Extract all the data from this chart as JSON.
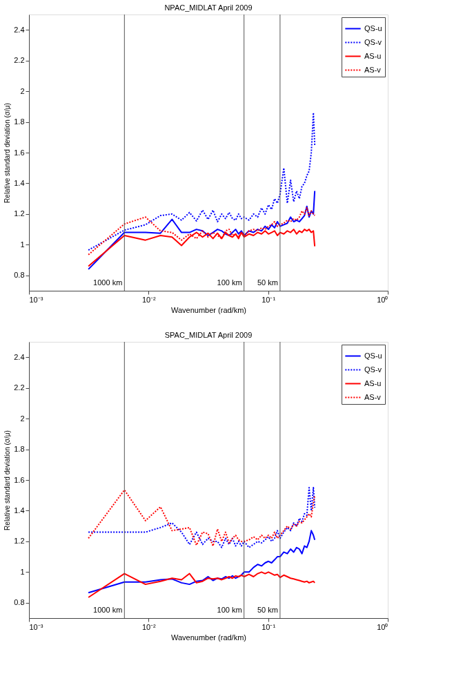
{
  "chart_data": [
    {
      "type": "line",
      "title": "NPAC_MIDLAT April 2009",
      "xlabel": "Wavenumber (rad/km)",
      "ylabel": "Relative standard deviation (σ/μ)",
      "log": "x",
      "grid": false,
      "legend": "top right",
      "x": [
        0.00314,
        0.00628,
        0.00942,
        0.01257,
        0.01571,
        0.01885,
        0.02199,
        0.02513,
        0.02827,
        0.03142,
        0.03456,
        0.0377,
        0.04084,
        0.04398,
        0.04712,
        0.05027,
        0.05341,
        0.05655,
        0.05969,
        0.06283,
        0.06912,
        0.0754,
        0.08168,
        0.08796,
        0.09425,
        0.1005,
        0.1068,
        0.1131,
        0.1194,
        0.1257,
        0.1351,
        0.1445,
        0.1539,
        0.1634,
        0.1728,
        0.1822,
        0.1916,
        0.2011,
        0.2105,
        0.2199,
        0.2293,
        0.2388,
        0.245
      ],
      "xlim": [
        0.001,
        1
      ],
      "xticks": [
        {
          "value": 0.001,
          "label": "10⁻³"
        },
        {
          "value": 0.01,
          "label": "10⁻²"
        },
        {
          "value": 0.1,
          "label": "10⁻¹"
        },
        {
          "value": 1,
          "label": "10⁰"
        }
      ],
      "ylim": [
        0.7,
        2.5
      ],
      "yticks": [
        0.8,
        1,
        1.2,
        1.4,
        1.6,
        1.8,
        2,
        2.2,
        2.4
      ],
      "ref_lines": [
        {
          "axis": "x",
          "value": 0.00628,
          "label": "1000 km",
          "color": "#555555"
        },
        {
          "axis": "x",
          "value": 0.0628,
          "label": "100 km",
          "color": "#555555"
        },
        {
          "axis": "x",
          "value": 0.1257,
          "label": "50 km",
          "color": "#555555"
        }
      ],
      "series": [
        {
          "name": "QS-u",
          "color": "#0000ff",
          "line_style": "solid",
          "values": [
            0.84,
            1.08,
            1.08,
            1.075,
            1.165,
            1.08,
            1.08,
            1.1,
            1.09,
            1.06,
            1.08,
            1.1,
            1.09,
            1.07,
            1.06,
            1.08,
            1.1,
            1.07,
            1.09,
            1.06,
            1.09,
            1.08,
            1.1,
            1.09,
            1.12,
            1.1,
            1.13,
            1.11,
            1.15,
            1.12,
            1.13,
            1.14,
            1.18,
            1.15,
            1.16,
            1.15,
            1.17,
            1.19,
            1.25,
            1.18,
            1.22,
            1.2,
            1.35
          ]
        },
        {
          "name": "QS-v",
          "color": "#0000ff",
          "line_style": "dotted",
          "values": [
            0.965,
            1.095,
            1.13,
            1.19,
            1.2,
            1.16,
            1.21,
            1.155,
            1.225,
            1.165,
            1.225,
            1.15,
            1.2,
            1.17,
            1.21,
            1.17,
            1.16,
            1.2,
            1.17,
            1.18,
            1.16,
            1.2,
            1.18,
            1.24,
            1.2,
            1.26,
            1.23,
            1.3,
            1.27,
            1.33,
            1.5,
            1.27,
            1.42,
            1.28,
            1.35,
            1.3,
            1.38,
            1.4,
            1.45,
            1.48,
            1.6,
            1.86,
            1.65
          ]
        },
        {
          "name": "AS-u",
          "color": "#ff0000",
          "line_style": "solid",
          "values": [
            0.86,
            1.06,
            1.03,
            1.06,
            1.05,
            0.995,
            1.05,
            1.08,
            1.05,
            1.075,
            1.04,
            1.075,
            1.04,
            1.08,
            1.06,
            1.05,
            1.07,
            1.04,
            1.08,
            1.05,
            1.07,
            1.06,
            1.08,
            1.07,
            1.09,
            1.07,
            1.08,
            1.09,
            1.06,
            1.08,
            1.07,
            1.09,
            1.08,
            1.1,
            1.07,
            1.09,
            1.08,
            1.1,
            1.09,
            1.1,
            1.08,
            1.09,
            0.99
          ]
        },
        {
          "name": "AS-v",
          "color": "#ff0000",
          "line_style": "dotted",
          "values": [
            0.935,
            1.135,
            1.18,
            1.09,
            1.08,
            1.03,
            1.07,
            1.04,
            1.09,
            1.05,
            1.08,
            1.06,
            1.04,
            1.09,
            1.1,
            1.06,
            1.07,
            1.05,
            1.08,
            1.06,
            1.09,
            1.1,
            1.09,
            1.11,
            1.1,
            1.12,
            1.13,
            1.15,
            1.12,
            1.13,
            1.14,
            1.16,
            1.15,
            1.17,
            1.16,
            1.18,
            1.22,
            1.2,
            1.24,
            1.19,
            1.22,
            1.2,
            1.19
          ]
        }
      ]
    },
    {
      "type": "line",
      "title": "SPAC_MIDLAT April 2009",
      "xlabel": "Wavenumber (rad/km)",
      "ylabel": "Relative standard deviation (σ/μ)",
      "log": "x",
      "grid": false,
      "legend": "top right",
      "x": [
        0.00314,
        0.00628,
        0.00942,
        0.01257,
        0.01571,
        0.01885,
        0.02199,
        0.02513,
        0.02827,
        0.03142,
        0.03456,
        0.0377,
        0.04084,
        0.04398,
        0.04712,
        0.05027,
        0.05341,
        0.05655,
        0.05969,
        0.06283,
        0.06912,
        0.0754,
        0.08168,
        0.08796,
        0.09425,
        0.1005,
        0.1068,
        0.1131,
        0.1194,
        0.1257,
        0.1351,
        0.1445,
        0.1539,
        0.1634,
        0.1728,
        0.1822,
        0.1916,
        0.2011,
        0.2105,
        0.2199,
        0.2293,
        0.2388,
        0.245
      ],
      "xlim": [
        0.001,
        1
      ],
      "xticks": [
        {
          "value": 0.001,
          "label": "10⁻³"
        },
        {
          "value": 0.01,
          "label": "10⁻²"
        },
        {
          "value": 0.1,
          "label": "10⁻¹"
        },
        {
          "value": 1,
          "label": "10⁰"
        }
      ],
      "ylim": [
        0.7,
        2.5
      ],
      "yticks": [
        0.8,
        1,
        1.2,
        1.4,
        1.6,
        1.8,
        2,
        2.2,
        2.4
      ],
      "ref_lines": [
        {
          "axis": "x",
          "value": 0.00628,
          "label": "1000 km",
          "color": "#555555"
        },
        {
          "axis": "x",
          "value": 0.0628,
          "label": "100 km",
          "color": "#555555"
        },
        {
          "axis": "x",
          "value": 0.1257,
          "label": "50 km",
          "color": "#555555"
        }
      ],
      "series": [
        {
          "name": "QS-u",
          "color": "#0000ff",
          "line_style": "solid",
          "values": [
            0.865,
            0.935,
            0.935,
            0.95,
            0.955,
            0.93,
            0.92,
            0.94,
            0.945,
            0.97,
            0.945,
            0.96,
            0.955,
            0.97,
            0.96,
            0.975,
            0.96,
            0.97,
            0.98,
            1.0,
            1.0,
            1.03,
            1.05,
            1.04,
            1.06,
            1.07,
            1.06,
            1.08,
            1.1,
            1.1,
            1.13,
            1.12,
            1.15,
            1.13,
            1.16,
            1.15,
            1.12,
            1.17,
            1.16,
            1.2,
            1.27,
            1.24,
            1.21
          ]
        },
        {
          "name": "QS-v",
          "color": "#0000ff",
          "line_style": "dotted",
          "values": [
            1.26,
            1.26,
            1.26,
            1.29,
            1.32,
            1.26,
            1.18,
            1.26,
            1.18,
            1.22,
            1.2,
            1.2,
            1.16,
            1.22,
            1.18,
            1.22,
            1.17,
            1.2,
            1.17,
            1.2,
            1.16,
            1.18,
            1.2,
            1.19,
            1.21,
            1.23,
            1.2,
            1.22,
            1.27,
            1.22,
            1.26,
            1.29,
            1.27,
            1.32,
            1.3,
            1.35,
            1.33,
            1.38,
            1.37,
            1.55,
            1.4,
            1.55,
            1.42
          ]
        },
        {
          "name": "AS-u",
          "color": "#ff0000",
          "line_style": "solid",
          "values": [
            0.835,
            0.99,
            0.92,
            0.94,
            0.96,
            0.95,
            0.99,
            0.93,
            0.94,
            0.96,
            0.955,
            0.96,
            0.95,
            0.96,
            0.97,
            0.96,
            0.975,
            0.97,
            0.98,
            0.97,
            0.985,
            0.97,
            0.99,
            1.0,
            0.99,
            1.0,
            0.99,
            0.98,
            0.985,
            0.965,
            0.98,
            0.97,
            0.96,
            0.955,
            0.95,
            0.945,
            0.94,
            0.935,
            0.94,
            0.93,
            0.935,
            0.94,
            0.93
          ]
        },
        {
          "name": "AS-v",
          "color": "#ff0000",
          "line_style": "dotted",
          "values": [
            1.22,
            1.535,
            1.335,
            1.425,
            1.27,
            1.28,
            1.29,
            1.175,
            1.26,
            1.25,
            1.17,
            1.28,
            1.2,
            1.26,
            1.19,
            1.22,
            1.24,
            1.21,
            1.2,
            1.2,
            1.21,
            1.23,
            1.21,
            1.24,
            1.22,
            1.24,
            1.22,
            1.26,
            1.22,
            1.24,
            1.27,
            1.3,
            1.28,
            1.31,
            1.3,
            1.33,
            1.32,
            1.34,
            1.36,
            1.38,
            1.36,
            1.45,
            1.5
          ]
        }
      ]
    }
  ]
}
